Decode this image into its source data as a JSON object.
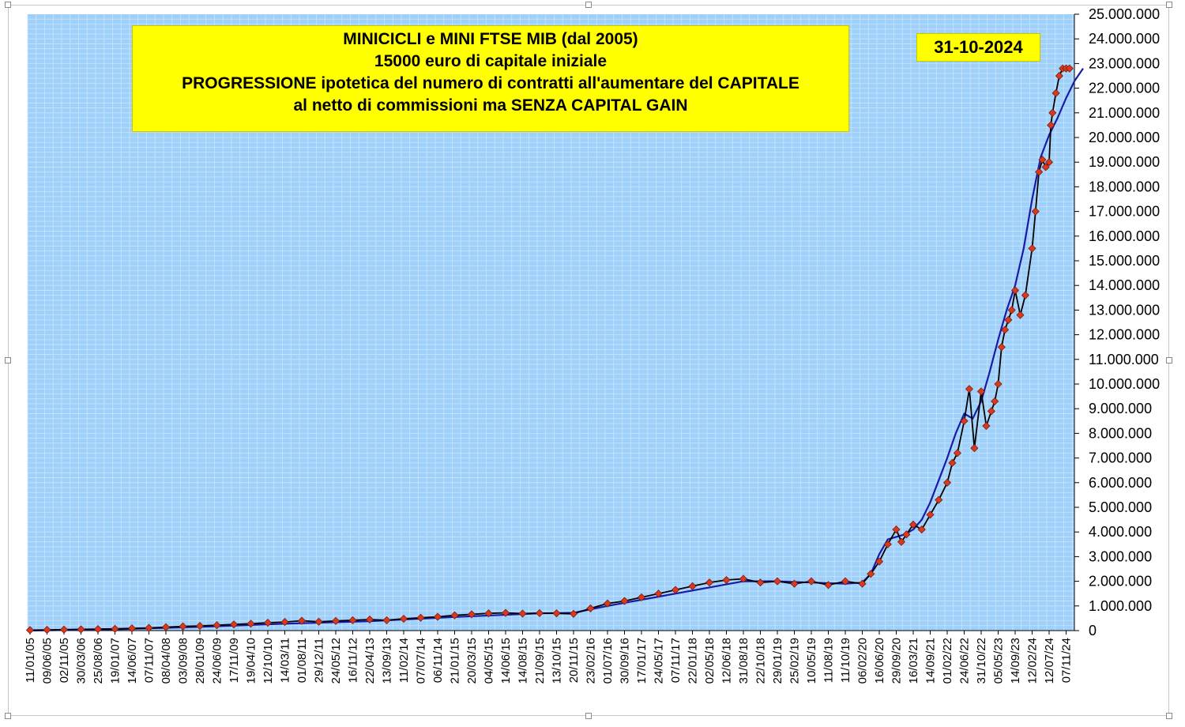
{
  "title_lines": [
    "MINICICLI e MINI FTSE MIB (dal 2005)",
    "15000 euro di capitale iniziale",
    "PROGRESSIONE ipotetica del numero di contratti all'aumentare del CAPITALE",
    "al netto di commissioni ma SENZA CAPITAL GAIN"
  ],
  "date_label": "31-10-2024",
  "colors": {
    "plot_background": "#9fd0fa",
    "grid": "#c9e4fb",
    "equity_line": "#000000",
    "marker_fill": "#d93a1f",
    "marker_stroke": "#7a1c0c",
    "average_line": "#1a1aa8",
    "title_box": "#ffff00"
  },
  "chart_data": {
    "type": "line",
    "title": "MINICICLI e MINI FTSE MIB (dal 2005)",
    "ylim": [
      0,
      25000000
    ],
    "y_ticks": [
      "0",
      "1.000.000",
      "2.000.000",
      "3.000.000",
      "4.000.000",
      "5.000.000",
      "6.000.000",
      "7.000.000",
      "8.000.000",
      "9.000.000",
      "10.000.000",
      "11.000.000",
      "12.000.000",
      "13.000.000",
      "14.000.000",
      "15.000.000",
      "16.000.000",
      "17.000.000",
      "18.000.000",
      "19.000.000",
      "20.000.000",
      "21.000.000",
      "22.000.000",
      "23.000.000",
      "24.000.000",
      "25.000.000"
    ],
    "x_ticks": [
      "11/01/05",
      "09/06/05",
      "02/11/05",
      "30/03/06",
      "25/08/06",
      "19/01/07",
      "14/06/07",
      "07/11/07",
      "08/04/08",
      "03/09/08",
      "28/01/09",
      "24/06/09",
      "17/11/09",
      "19/04/10",
      "12/10/10",
      "14/03/11",
      "01/08/11",
      "29/12/11",
      "24/05/12",
      "16/11/12",
      "22/04/13",
      "13/09/13",
      "11/02/14",
      "07/07/14",
      "06/11/14",
      "21/01/15",
      "20/03/15",
      "04/05/15",
      "14/06/15",
      "14/08/15",
      "21/09/15",
      "13/10/15",
      "20/11/15",
      "23/02/16",
      "01/07/16",
      "30/09/16",
      "17/01/17",
      "24/05/17",
      "07/11/17",
      "22/01/18",
      "02/05/18",
      "12/06/18",
      "31/08/18",
      "22/10/18",
      "29/01/19",
      "25/02/19",
      "10/05/19",
      "11/08/19",
      "11/10/19",
      "06/02/20",
      "16/06/20",
      "29/09/20",
      "16/03/21",
      "14/09/21",
      "01/02/22",
      "24/06/22",
      "31/10/22",
      "05/05/23",
      "14/09/23",
      "12/02/24",
      "12/07/24",
      "07/11/24"
    ],
    "grid": true,
    "series": [
      {
        "style": "line-with-diamond-markers",
        "x": [
          0,
          1,
          2,
          3,
          4,
          5,
          6,
          7,
          8,
          9,
          10,
          11,
          12,
          13,
          14,
          15,
          16,
          17,
          18,
          19,
          20,
          21,
          22,
          23,
          24,
          25,
          26,
          27,
          28,
          29,
          30,
          31,
          32,
          33,
          34,
          35,
          36,
          37,
          38,
          39,
          40,
          41,
          42,
          43,
          44,
          45,
          46,
          47,
          48,
          49,
          49.5,
          50,
          50.5,
          51,
          51.3,
          51.6,
          52,
          52.5,
          53,
          53.5,
          54,
          54.3,
          54.6,
          55,
          55.3,
          55.6,
          56,
          56.3,
          56.6,
          56.8,
          57,
          57.2,
          57.4,
          57.6,
          57.8,
          58,
          58.3,
          58.6,
          59,
          59.2,
          59.4,
          59.6,
          59.8,
          60,
          60.1,
          60.2,
          60.4,
          60.6,
          60.8,
          61,
          61.2
        ],
        "values": [
          20000,
          30000,
          40000,
          50000,
          60000,
          70000,
          90000,
          110000,
          140000,
          170000,
          190000,
          220000,
          250000,
          280000,
          320000,
          350000,
          400000,
          360000,
          390000,
          420000,
          450000,
          420000,
          480000,
          520000,
          560000,
          620000,
          660000,
          700000,
          720000,
          690000,
          710000,
          700000,
          680000,
          900000,
          1100000,
          1200000,
          1350000,
          1500000,
          1650000,
          1800000,
          1950000,
          2050000,
          2100000,
          1950000,
          2000000,
          1900000,
          2000000,
          1850000,
          2000000,
          1900000,
          2300000,
          2800000,
          3500000,
          4100000,
          3600000,
          3900000,
          4300000,
          4100000,
          4700000,
          5300000,
          6000000,
          6800000,
          7200000,
          8500000,
          9800000,
          7400000,
          9700000,
          8300000,
          8900000,
          9300000,
          10000000,
          11500000,
          12200000,
          12600000,
          13000000,
          13800000,
          12800000,
          13600000,
          15500000,
          17000000,
          18600000,
          19100000,
          18800000,
          19000000,
          20500000,
          21000000,
          21800000,
          22500000,
          22800000,
          22800000,
          22800000
        ]
      },
      {
        "style": "smooth-line",
        "x": [
          0,
          5,
          10,
          15,
          20,
          25,
          30,
          32,
          34,
          36,
          38,
          40,
          42,
          44,
          46,
          48,
          49,
          49.5,
          50,
          50.5,
          51,
          51.5,
          52,
          52.5,
          53,
          53.5,
          54,
          54.5,
          55,
          55.5,
          56,
          56.5,
          57,
          57.5,
          58,
          58.5,
          59,
          59.5,
          60,
          60.5,
          61,
          61.5,
          62
        ],
        "values": [
          0,
          50000,
          150000,
          280000,
          380000,
          550000,
          700000,
          720000,
          1000000,
          1250000,
          1500000,
          1750000,
          2000000,
          2000000,
          1950000,
          1900000,
          1950000,
          2300000,
          3100000,
          3700000,
          3800000,
          3900000,
          4100000,
          4500000,
          5200000,
          6100000,
          7000000,
          8000000,
          8800000,
          8600000,
          9300000,
          10500000,
          11800000,
          13000000,
          14000000,
          15500000,
          17500000,
          19200000,
          20100000,
          20800000,
          21600000,
          22300000,
          22800000
        ]
      }
    ]
  }
}
